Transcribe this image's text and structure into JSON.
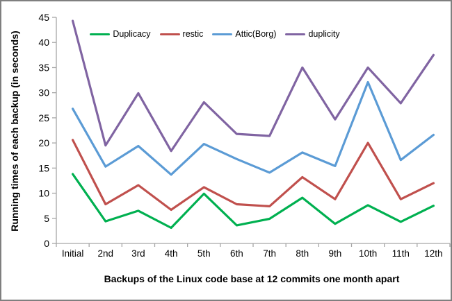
{
  "chart_data": {
    "type": "line",
    "title": "",
    "ylabel": "Running times of each backup  (in seconds)",
    "xlabel": "Backups of the Linux code base at 12 commits one month apart",
    "categories": [
      "Initial",
      "2nd",
      "3rd",
      "4th",
      "5th",
      "6th",
      "7th",
      "8th",
      "9th",
      "10th",
      "11th",
      "12th"
    ],
    "ylim": [
      0,
      45
    ],
    "ytick_step": 5,
    "grid": false,
    "legend_position": "top",
    "axis_color": "#a6a6a6",
    "series": [
      {
        "name": "Duplicacy",
        "color": "#00b050",
        "values": [
          13.8,
          4.4,
          6.5,
          3.1,
          9.9,
          3.6,
          4.9,
          9.1,
          3.9,
          7.6,
          4.3,
          7.5
        ]
      },
      {
        "name": "restic",
        "color": "#c0504d",
        "values": [
          20.6,
          7.8,
          11.6,
          6.7,
          11.2,
          7.8,
          7.4,
          13.2,
          8.8,
          20.0,
          8.8,
          12.0
        ]
      },
      {
        "name": "Attic(Borg)",
        "color": "#5b9bd5",
        "values": [
          26.8,
          15.3,
          19.4,
          13.7,
          19.8,
          16.8,
          14.1,
          18.1,
          15.4,
          32.1,
          16.6,
          21.6
        ]
      },
      {
        "name": "duplicity",
        "color": "#8064a2",
        "values": [
          44.3,
          19.5,
          29.9,
          18.4,
          28.1,
          21.8,
          21.4,
          35.0,
          24.7,
          35.0,
          27.9,
          37.5
        ]
      }
    ]
  }
}
